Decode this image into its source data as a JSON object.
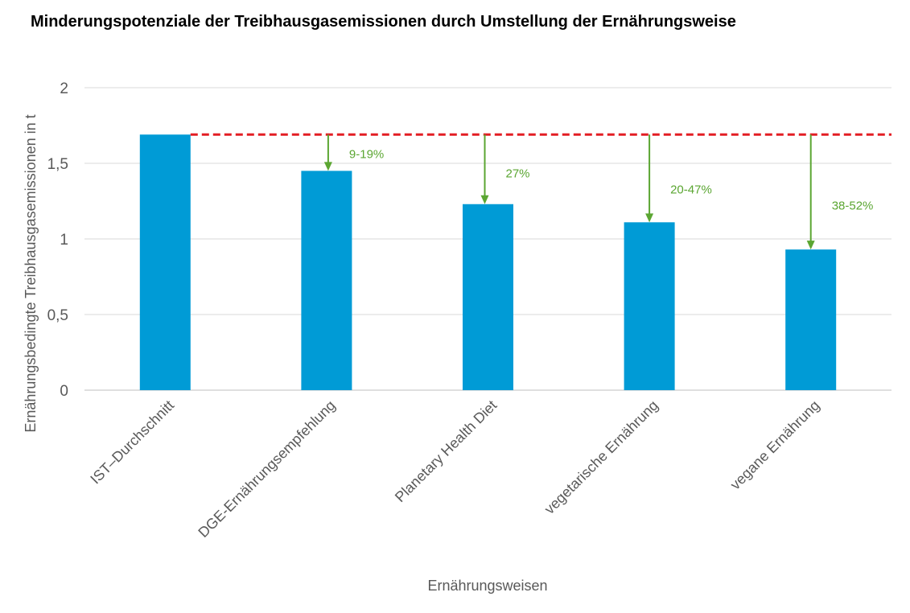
{
  "chart_data": {
    "type": "bar",
    "title": "Minderungspotenziale der Treibhausgasemissionen durch Umstellung der Ernährungsweise",
    "xlabel": "Ernährungsweisen",
    "ylabel": "Ernährungsbedingte Treibhausgasemissionen in t",
    "ylim": [
      0,
      2
    ],
    "yticks": [
      0,
      0.5,
      1,
      1.5,
      2
    ],
    "ytick_labels": [
      "0",
      "0,5",
      "1",
      "1,5",
      "2"
    ],
    "grid": true,
    "categories": [
      "IST–Durchschnitt",
      "DGE-Ernährungsempfehlung",
      "Planetary Health Diet",
      "vegetarische Ernährung",
      "vegane Ernährung"
    ],
    "values": [
      1.69,
      1.45,
      1.23,
      1.11,
      0.93
    ],
    "reference_line": {
      "value": 1.69,
      "style": "dashed",
      "color": "#E31E24"
    },
    "annotations": [
      {
        "category": "DGE-Ernährungsempfehlung",
        "text": "9-19%"
      },
      {
        "category": "Planetary Health Diet",
        "text": "27%"
      },
      {
        "category": "vegetarische Ernährung",
        "text": "20-47%"
      },
      {
        "category": "vegane Ernährung",
        "text": "38-52%"
      }
    ],
    "colors": {
      "bar": "#009BD6",
      "annotation": "#5BA632",
      "grid": "#D9D9D9",
      "text": "#595959"
    }
  }
}
